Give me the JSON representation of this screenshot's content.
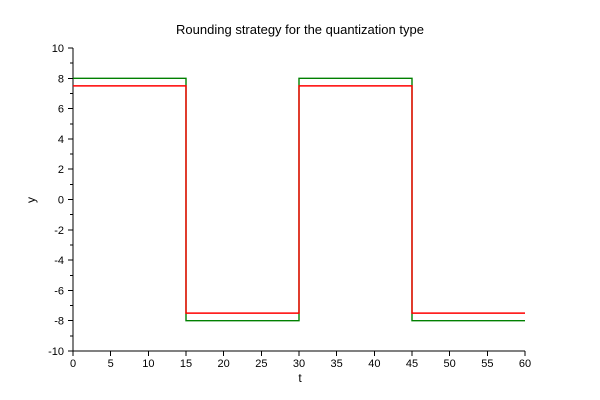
{
  "title": "Rounding strategy for the quantization type",
  "chart_data": {
    "type": "line",
    "line_style": "step-square-wave",
    "title": "Rounding strategy for the quantization type",
    "xlabel": "t",
    "ylabel": "y",
    "xlim": [
      0,
      60
    ],
    "ylim": [
      -10,
      10
    ],
    "x_major_ticks": [
      0,
      5,
      10,
      15,
      20,
      25,
      30,
      35,
      40,
      45,
      50,
      55,
      60
    ],
    "y_major_ticks": [
      10,
      8,
      6,
      4,
      2,
      0,
      -2,
      -4,
      -6,
      -8,
      -10
    ],
    "y_minor_ticks": [
      9,
      7,
      5,
      3,
      1,
      -1,
      -3,
      -5,
      -7,
      -9
    ],
    "grid": false,
    "legend_position": "none",
    "series": [
      {
        "name": "green-series",
        "color": "#008000",
        "amplitude": 8,
        "points": [
          [
            0,
            8
          ],
          [
            15,
            8
          ],
          [
            15,
            -8
          ],
          [
            30,
            -8
          ],
          [
            30,
            8
          ],
          [
            45,
            8
          ],
          [
            45,
            -8
          ],
          [
            60,
            -8
          ]
        ]
      },
      {
        "name": "red-series",
        "color": "#ff0000",
        "amplitude": 7.5,
        "points": [
          [
            0,
            7.5
          ],
          [
            15,
            7.5
          ],
          [
            15,
            -7.5
          ],
          [
            30,
            -7.5
          ],
          [
            30,
            7.5
          ],
          [
            45,
            7.5
          ],
          [
            45,
            -7.5
          ],
          [
            60,
            -7.5
          ]
        ]
      }
    ]
  },
  "colors": {
    "background": "#ffffff",
    "axis": "#000000",
    "text": "#000000"
  }
}
